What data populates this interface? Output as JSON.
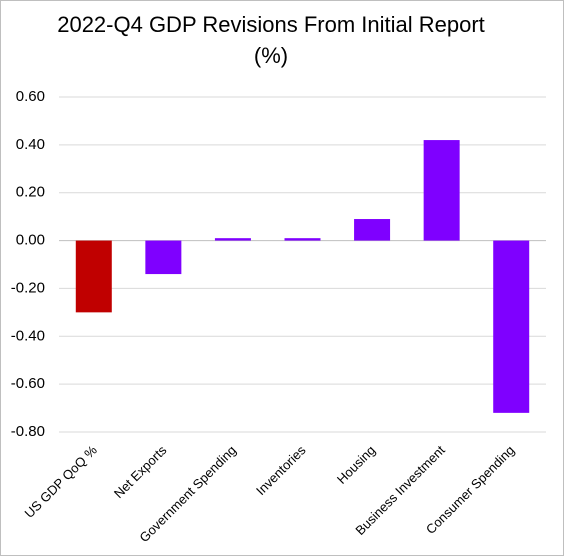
{
  "chart_data": {
    "type": "bar",
    "title_lines": [
      "2022-Q4 GDP Revisions From Initial Report",
      "(%)"
    ],
    "categories": [
      "US GDP QoQ %",
      "Net Exports",
      "Government Spending",
      "Inventories",
      "Housing",
      "Business Investment",
      "Consumer Spending"
    ],
    "values": [
      -0.3,
      -0.14,
      0.01,
      0.01,
      0.09,
      0.42,
      -0.72
    ],
    "bar_colors": [
      "#c00000",
      "#7f00ff",
      "#7f00ff",
      "#7f00ff",
      "#7f00ff",
      "#7f00ff",
      "#7f00ff"
    ],
    "ylim": [
      -0.8,
      0.6
    ],
    "yticks": [
      "0.60",
      "0.40",
      "0.20",
      "0.00",
      "-0.20",
      "-0.40",
      "-0.60",
      "-0.80"
    ],
    "ytick_values": [
      0.6,
      0.4,
      0.2,
      0.0,
      -0.2,
      -0.4,
      -0.6,
      -0.8
    ],
    "grid": true,
    "legend": "none"
  }
}
